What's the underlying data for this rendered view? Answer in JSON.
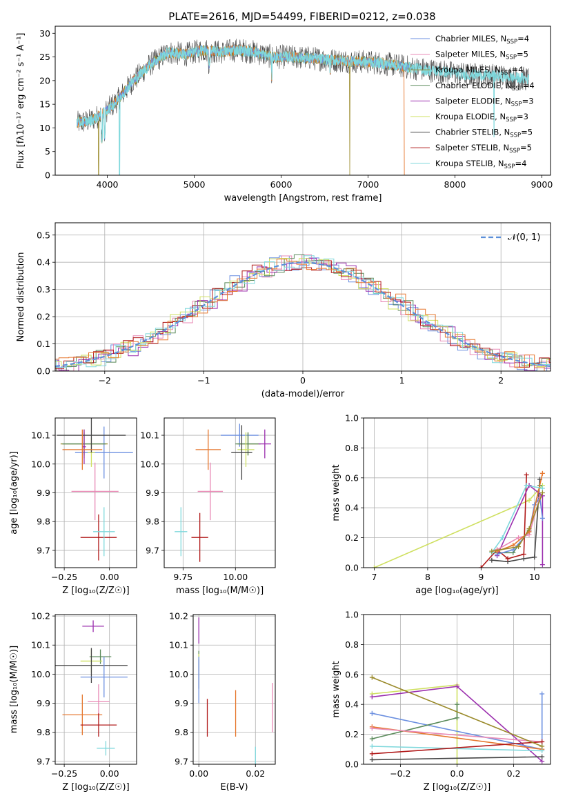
{
  "figure": {
    "title": "PLATE=2616, MJD=54499, FIBERID=0212, z=0.038"
  },
  "colors": {
    "Chabrier MILES": "#6b8fe0",
    "Salpeter MILES": "#e889b5",
    "Kroupa MILES": "#9a8a2a",
    "Chabrier ELODIE": "#5a8a5a",
    "Salpeter ELODIE": "#9b2fae",
    "Kroupa ELODIE": "#cfe060",
    "Chabrier STELIB": "#454545",
    "Salpeter STELIB": "#b01818",
    "Kroupa STELIB": "#7fd8dc",
    "orange": "#e6772e",
    "gauss": "#5b8fd9"
  },
  "chart_data": [
    {
      "id": "spectrum",
      "type": "line",
      "title": "PLATE=2616, MJD=54499, FIBERID=0212, z=0.038",
      "xlabel": "wavelength [Angstrom, rest frame]",
      "ylabel": "Flux [fλ10⁻¹⁷ erg cm⁻² s⁻¹ A⁻¹]",
      "xlim": [
        3400,
        9100
      ],
      "ylim": [
        0,
        31.5
      ],
      "xticks": [
        4000,
        5000,
        6000,
        7000,
        8000,
        9000
      ],
      "yticks": [
        0,
        5,
        10,
        15,
        20,
        25,
        30
      ],
      "legend_position": "top-right",
      "grid": false,
      "legend": [
        {
          "label": "Chabrier MILES, N",
          "sub": "SSP",
          "n": "=4"
        },
        {
          "label": "Salpeter MILES, N",
          "sub": "SSP",
          "n": "=5"
        },
        {
          "label": "Kroupa MILES, N",
          "sub": "SSP",
          "n": "=4"
        },
        {
          "label": "Chabrier ELODIE, N",
          "sub": "SSP",
          "n": "=4"
        },
        {
          "label": "Salpeter ELODIE, N",
          "sub": "SSP",
          "n": "=3"
        },
        {
          "label": "Kroupa ELODIE, N",
          "sub": "SSP",
          "n": "=3"
        },
        {
          "label": "Chabrier STELIB, N",
          "sub": "SSP",
          "n": "=5"
        },
        {
          "label": "Salpeter STELIB, N",
          "sub": "SSP",
          "n": "=5"
        },
        {
          "label": "Kroupa STELIB, N",
          "sub": "SSP",
          "n": "=4"
        }
      ],
      "continuum": {
        "x": [
          3650,
          3800,
          3950,
          4100,
          4300,
          4500,
          4700,
          4900,
          5100,
          5300,
          5500,
          5700,
          5900,
          6100,
          6300,
          6500,
          6700,
          6900,
          7100,
          7300,
          7500,
          7700,
          7900,
          8100,
          8300,
          8500,
          8700,
          8850
        ],
        "y": [
          11,
          11.5,
          13,
          15.5,
          20,
          23.5,
          26,
          25.5,
          26.5,
          26,
          26.5,
          26,
          25,
          25,
          24.8,
          24.5,
          24.2,
          24,
          23.8,
          23.3,
          22.7,
          22.2,
          21.8,
          21.3,
          21.2,
          21,
          20.6,
          20.3
        ]
      }
    },
    {
      "id": "residuals",
      "type": "line",
      "xlabel": "(data-model)/error",
      "ylabel": "Normed distribution",
      "xlim": [
        -2.5,
        2.5
      ],
      "ylim": [
        0,
        0.545
      ],
      "xticks": [
        -2,
        -1,
        0,
        1,
        2
      ],
      "yticks": [
        0.0,
        0.1,
        0.2,
        0.3,
        0.4,
        0.5
      ],
      "grid": true,
      "legend_position": "top-right",
      "gauss_label": "𝒩(0, 1)"
    },
    {
      "id": "age_vs_Z",
      "type": "scatter",
      "xlabel": "Z [log₁₀(Z/Z☉)]",
      "ylabel": "age  [log₁₀(age/yr)]",
      "xlim": [
        -0.3,
        0.15
      ],
      "ylim": [
        9.64,
        10.16
      ],
      "xticks": [
        -0.25,
        0.0
      ],
      "yticks": [
        9.7,
        9.8,
        9.9,
        10.0,
        10.1
      ],
      "grid": true,
      "points": [
        {
          "series": "Chabrier MILES",
          "x": -0.03,
          "y": 10.04,
          "xerr": 0.16,
          "yerr": 0.09
        },
        {
          "series": "Salpeter MILES",
          "x": -0.08,
          "y": 9.905,
          "xerr": 0.13,
          "yerr": 0.1
        },
        {
          "series": "Kroupa MILES",
          "x": -0.14,
          "y": 10.07,
          "xerr": 0.13,
          "yerr": 0.05
        },
        {
          "series": "Chabrier ELODIE",
          "x": -0.14,
          "y": 10.07,
          "xerr": 0.12,
          "yerr": 0.04
        },
        {
          "series": "Salpeter ELODIE",
          "x": -0.14,
          "y": 10.06,
          "xerr": 0.01,
          "yerr": 0.06
        },
        {
          "series": "Kroupa ELODIE",
          "x": -0.1,
          "y": 10.04,
          "xerr": 0.02,
          "yerr": 0.05
        },
        {
          "series": "Chabrier STELIB",
          "x": -0.1,
          "y": 10.1,
          "xerr": 0.19,
          "yerr": 0.06
        },
        {
          "series": "Salpeter STELIB",
          "x": -0.06,
          "y": 9.745,
          "xerr": 0.1,
          "yerr": 0.08
        },
        {
          "series": "Kroupa STELIB",
          "x": -0.03,
          "y": 9.765,
          "xerr": 0.06,
          "yerr": 0.085
        },
        {
          "series": "orange",
          "x": -0.15,
          "y": 10.05,
          "xerr": 0.11,
          "yerr": 0.07
        }
      ]
    },
    {
      "id": "age_vs_mass",
      "type": "scatter",
      "xlabel": "mass [log₁₀(M/M☉)]",
      "ylim": [
        9.64,
        10.16
      ],
      "xlim": [
        9.66,
        10.19
      ],
      "xticks": [
        9.75,
        10.0
      ],
      "yticks": [
        9.7,
        9.8,
        9.9,
        10.0,
        10.1
      ],
      "grid": true,
      "points": [
        {
          "series": "Chabrier MILES",
          "x": 10.02,
          "y": 10.1,
          "xerr": 0.09,
          "yerr": 0.04
        },
        {
          "series": "Salpeter MILES",
          "x": 9.88,
          "y": 9.905,
          "xerr": 0.06,
          "yerr": 0.1
        },
        {
          "series": "Kroupa MILES",
          "x": 10.06,
          "y": 10.07,
          "xerr": 0.05,
          "yerr": 0.04
        },
        {
          "series": "Chabrier ELODIE",
          "x": 10.06,
          "y": 10.07,
          "xerr": 0.06,
          "yerr": 0.04
        },
        {
          "series": "Salpeter ELODIE",
          "x": 10.14,
          "y": 10.07,
          "xerr": 0.03,
          "yerr": 0.05
        },
        {
          "series": "Kroupa ELODIE",
          "x": 10.05,
          "y": 10.05,
          "xerr": 0.04,
          "yerr": 0.06
        },
        {
          "series": "Chabrier STELIB",
          "x": 10.03,
          "y": 10.04,
          "xerr": 0.05,
          "yerr": 0.095
        },
        {
          "series": "Salpeter STELIB",
          "x": 9.83,
          "y": 9.745,
          "xerr": 0.04,
          "yerr": 0.085
        },
        {
          "series": "Kroupa STELIB",
          "x": 9.74,
          "y": 9.765,
          "xerr": 0.03,
          "yerr": 0.085
        },
        {
          "series": "orange",
          "x": 9.87,
          "y": 10.05,
          "xerr": 0.06,
          "yerr": 0.07
        }
      ]
    },
    {
      "id": "mw_vs_age",
      "type": "line",
      "xlabel": "age  [log₁₀(age/yr)]",
      "ylabel": "mass weight",
      "xlim": [
        6.8,
        10.3
      ],
      "ylim": [
        0,
        1.0
      ],
      "xticks": [
        7,
        8,
        9,
        10
      ],
      "yticks": [
        0.0,
        0.2,
        0.4,
        0.6,
        0.8,
        1.0
      ],
      "grid": true,
      "series": [
        {
          "name": "Kroupa ELODIE",
          "x": [
            7.0,
            9.9,
            10.15
          ],
          "y": [
            0.0,
            0.45,
            0.55
          ]
        },
        {
          "name": "Chabrier STELIB",
          "x": [
            9.2,
            9.5,
            9.8,
            10.0,
            10.1
          ],
          "y": [
            0.05,
            0.04,
            0.06,
            0.07,
            0.59
          ]
        },
        {
          "name": "Salpeter STELIB",
          "x": [
            9.0,
            9.3,
            9.5,
            9.8,
            9.85
          ],
          "y": [
            0.0,
            0.12,
            0.06,
            0.09,
            0.62
          ]
        },
        {
          "name": "Chabrier ELODIE",
          "x": [
            9.2,
            9.6,
            9.9,
            10.1
          ],
          "y": [
            0.1,
            0.1,
            0.25,
            0.55
          ]
        },
        {
          "name": "Salpeter ELODIE",
          "x": [
            9.3,
            9.9,
            10.15,
            10.15
          ],
          "y": [
            0.08,
            0.55,
            0.48,
            0.02
          ]
        },
        {
          "name": "Chabrier MILES",
          "x": [
            9.3,
            9.6,
            9.9,
            10.0,
            10.1,
            10.15
          ],
          "y": [
            0.09,
            0.12,
            0.24,
            0.42,
            0.47,
            0.33
          ]
        },
        {
          "name": "Salpeter MILES",
          "x": [
            9.3,
            9.7,
            9.9,
            10.1
          ],
          "y": [
            0.12,
            0.2,
            0.22,
            0.47
          ]
        },
        {
          "name": "orange",
          "x": [
            9.3,
            9.6,
            9.9,
            10.15
          ],
          "y": [
            0.11,
            0.15,
            0.24,
            0.63
          ]
        },
        {
          "name": "Kroupa STELIB",
          "x": [
            9.2,
            9.4,
            9.85,
            10.15
          ],
          "y": [
            0.1,
            0.2,
            0.55,
            0.53
          ]
        },
        {
          "name": "Kroupa MILES",
          "x": [
            9.2,
            9.7,
            9.9,
            10.15
          ],
          "y": [
            0.11,
            0.14,
            0.26,
            0.5
          ]
        }
      ]
    },
    {
      "id": "mass_vs_Z",
      "type": "scatter",
      "xlabel": "Z [log₁₀(Z/Z☉)]",
      "ylabel": "mass [log₁₀(M/M☉)]",
      "xlim": [
        -0.3,
        0.15
      ],
      "ylim": [
        9.69,
        10.205
      ],
      "xticks": [
        -0.25,
        0.0
      ],
      "yticks": [
        9.7,
        9.8,
        9.9,
        10.0,
        10.1,
        10.2
      ],
      "grid": true,
      "points": [
        {
          "series": "Salpeter ELODIE",
          "x": -0.09,
          "y": 10.165,
          "xerr": 0.06,
          "yerr": 0.02
        },
        {
          "series": "Chabrier ELODIE",
          "x": -0.05,
          "y": 10.06,
          "xerr": 0.06,
          "yerr": 0.025
        },
        {
          "series": "Kroupa ELODIE",
          "x": -0.1,
          "y": 10.045,
          "xerr": 0.06,
          "yerr": 0.04
        },
        {
          "series": "Chabrier STELIB",
          "x": -0.1,
          "y": 10.03,
          "xerr": 0.2,
          "yerr": 0.06
        },
        {
          "series": "Chabrier MILES",
          "x": -0.03,
          "y": 9.99,
          "xerr": 0.13,
          "yerr": 0.07
        },
        {
          "series": "Salpeter MILES",
          "x": -0.06,
          "y": 9.905,
          "xerr": 0.06,
          "yerr": 0.06
        },
        {
          "series": "orange",
          "x": -0.15,
          "y": 9.86,
          "xerr": 0.11,
          "yerr": 0.07
        },
        {
          "series": "Salpeter STELIB",
          "x": -0.06,
          "y": 9.825,
          "xerr": 0.1,
          "yerr": 0.04
        },
        {
          "series": "Kroupa STELIB",
          "x": -0.02,
          "y": 9.745,
          "xerr": 0.05,
          "yerr": 0.025
        }
      ]
    },
    {
      "id": "mass_vs_EBV",
      "type": "scatter",
      "xlabel": "E(B-V)",
      "xlim": [
        -0.002,
        0.027
      ],
      "ylim": [
        9.69,
        10.205
      ],
      "xticks": [
        0.0,
        0.02
      ],
      "yticks": [
        9.7,
        9.8,
        9.9,
        10.0,
        10.1,
        10.2
      ],
      "grid": true,
      "points": [
        {
          "series": "Salpeter ELODIE",
          "x": 0.0,
          "y": 10.15,
          "xerr": 0.0,
          "yerr": 0.045
        },
        {
          "series": "Chabrier ELODIE",
          "x": 0.0,
          "y": 10.05,
          "xerr": 0.0,
          "yerr": 0.03
        },
        {
          "series": "Kroupa ELODIE",
          "x": 0.0,
          "y": 10.04,
          "xerr": 0.0,
          "yerr": 0.03
        },
        {
          "series": "Chabrier STELIB",
          "x": 0.0,
          "y": 10.0,
          "xerr": 0.0,
          "yerr": 0.05
        },
        {
          "series": "Chabrier MILES",
          "x": 0.0,
          "y": 9.98,
          "xerr": 0.0,
          "yerr": 0.08
        },
        {
          "series": "Salpeter STELIB",
          "x": 0.003,
          "y": 9.85,
          "xerr": 0.0,
          "yerr": 0.065
        },
        {
          "series": "orange",
          "x": 0.013,
          "y": 9.865,
          "xerr": 0.0,
          "yerr": 0.08
        },
        {
          "series": "Kroupa STELIB",
          "x": 0.02,
          "y": 9.72,
          "xerr": 0.0,
          "yerr": 0.03
        },
        {
          "series": "Salpeter MILES",
          "x": 0.026,
          "y": 9.885,
          "xerr": 0.0,
          "yerr": 0.085
        }
      ]
    },
    {
      "id": "mw_vs_Z",
      "type": "line",
      "xlabel": "Z [log₁₀(Z/Z☉)]",
      "ylabel": "mass weight",
      "xlim": [
        -0.33,
        0.33
      ],
      "ylim": [
        0,
        1.0
      ],
      "xticks": [
        -0.2,
        0.0,
        0.2
      ],
      "yticks": [
        0.0,
        0.2,
        0.4,
        0.6,
        0.8,
        1.0
      ],
      "grid": true,
      "series": [
        {
          "name": "Kroupa ELODIE",
          "x": [
            -0.3,
            0.0,
            0.0
          ],
          "y": [
            0.47,
            0.53,
            0.0
          ]
        },
        {
          "name": "Salpeter ELODIE",
          "x": [
            -0.3,
            0.0,
            0.3
          ],
          "y": [
            0.45,
            0.52,
            0.02
          ]
        },
        {
          "name": "Chabrier MILES",
          "x": [
            -0.3,
            0.3,
            0.3
          ],
          "y": [
            0.34,
            0.1,
            0.47
          ]
        },
        {
          "name": "Chabrier ELODIE",
          "x": [
            -0.3,
            0.0,
            0.0
          ],
          "y": [
            0.17,
            0.31,
            0.4
          ]
        },
        {
          "name": "orange",
          "x": [
            -0.3,
            0.3
          ],
          "y": [
            0.25,
            0.1
          ]
        },
        {
          "name": "Salpeter MILES",
          "x": [
            -0.3,
            0.3
          ],
          "y": [
            0.24,
            0.15
          ]
        },
        {
          "name": "Kroupa STELIB",
          "x": [
            -0.3,
            0.3
          ],
          "y": [
            0.12,
            0.09
          ]
        },
        {
          "name": "Salpeter STELIB",
          "x": [
            -0.3,
            0.3
          ],
          "y": [
            0.07,
            0.15
          ]
        },
        {
          "name": "Chabrier STELIB",
          "x": [
            -0.3,
            0.3
          ],
          "y": [
            0.03,
            0.05
          ]
        },
        {
          "name": "Kroupa MILES",
          "x": [
            -0.3,
            0.3
          ],
          "y": [
            0.58,
            0.12
          ]
        }
      ]
    }
  ]
}
